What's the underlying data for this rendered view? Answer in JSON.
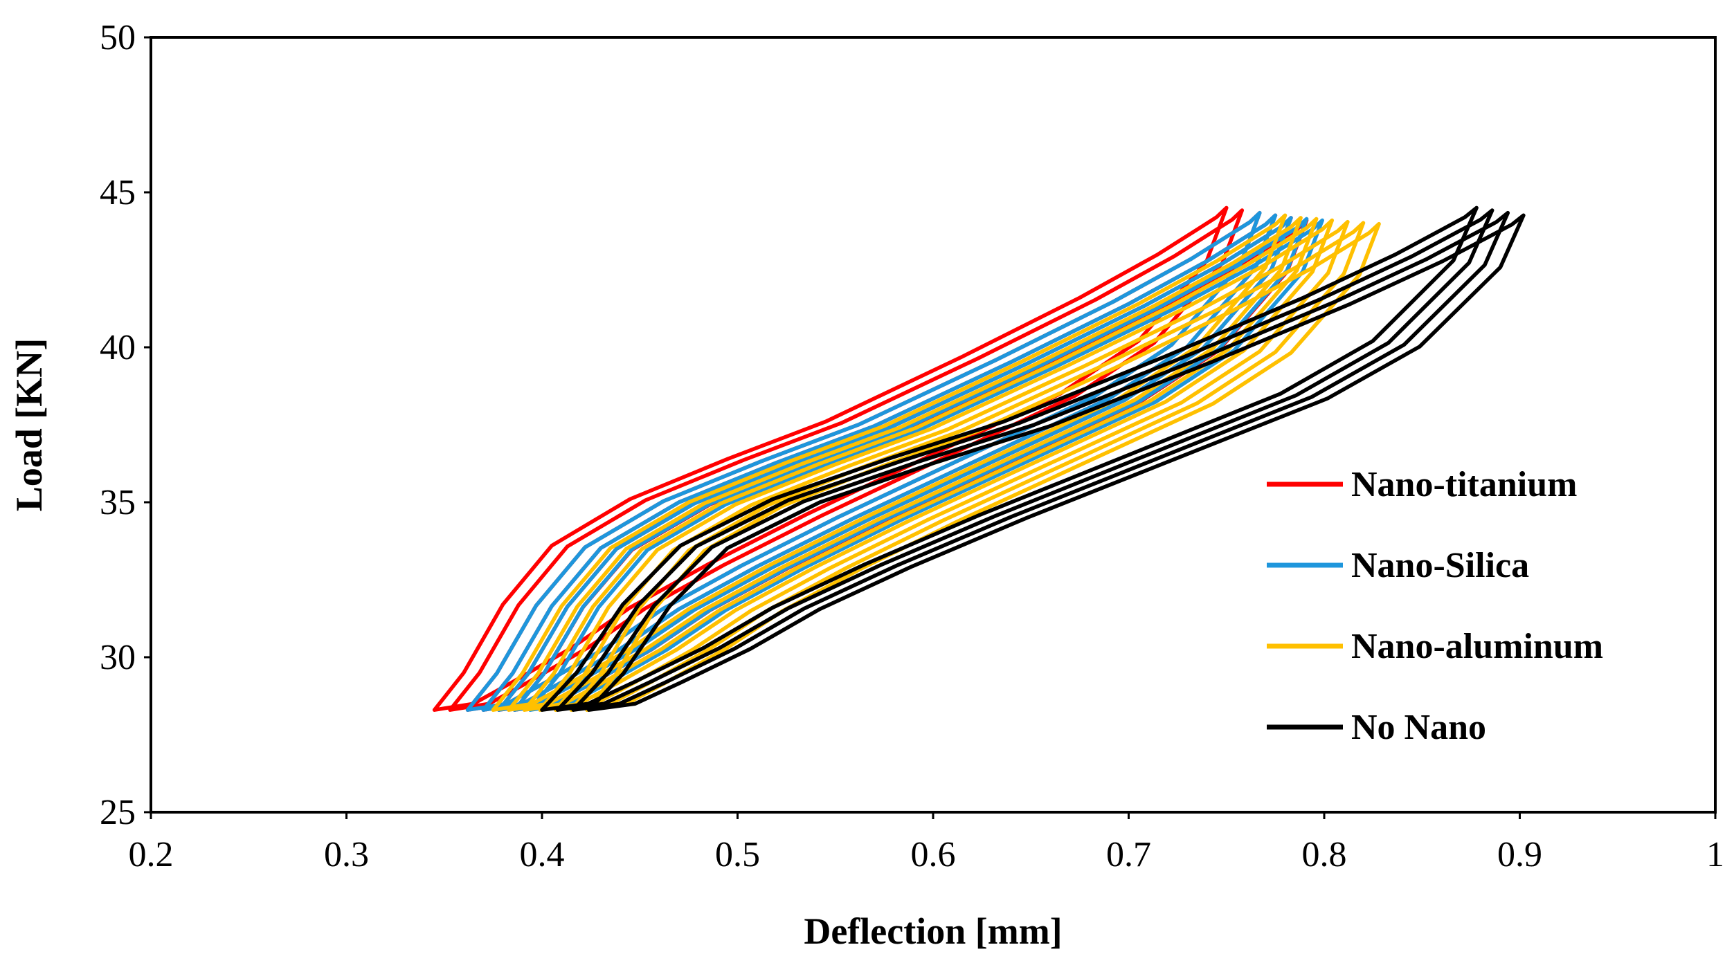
{
  "chart_data": {
    "type": "line",
    "title": "",
    "xlabel": "Deflection [mm]",
    "ylabel": "Load [KN]",
    "xlim": [
      0.2,
      1.0
    ],
    "ylim": [
      25,
      50
    ],
    "x_ticks": [
      0.2,
      0.3,
      0.4,
      0.5,
      0.6,
      0.7,
      0.8,
      0.9,
      1.0
    ],
    "x_tick_labels": [
      "0.2",
      "0.3",
      "0.4",
      "0.5",
      "0.6",
      "0.7",
      "0.8",
      "0.9",
      "1"
    ],
    "y_ticks": [
      25,
      30,
      35,
      40,
      45,
      50
    ],
    "y_tick_labels": [
      "25",
      "30",
      "35",
      "40",
      "45",
      "50"
    ],
    "grid": false,
    "legend_position": "right-center",
    "cycle_template": {
      "note": "Each hysteresis cycle: loading path (dx, load) from the minimum point, then unloading path; dx is deflection offset from cycle start",
      "loading_dx": [
        0.0,
        0.02,
        0.04,
        0.07,
        0.1,
        0.14,
        0.19,
        0.25,
        0.32,
        0.36,
        0.395,
        0.405
      ],
      "loading_load": [
        28.3,
        28.5,
        29.2,
        30.3,
        31.6,
        33.0,
        34.6,
        36.4,
        38.5,
        40.2,
        42.8,
        44.5
      ],
      "unloading_dx": [
        0.405,
        0.4,
        0.39,
        0.37,
        0.33,
        0.27,
        0.2,
        0.15,
        0.1,
        0.06,
        0.035,
        0.015,
        0.0
      ],
      "unloading_load": [
        44.5,
        44.2,
        43.8,
        43.0,
        41.6,
        39.7,
        37.6,
        36.4,
        35.1,
        33.6,
        31.7,
        29.5,
        28.3
      ]
    },
    "series": [
      {
        "name": "Nano-titanium",
        "color": "#ff0000",
        "cycle_starts": [
          0.345,
          0.353,
          0.362,
          0.37,
          0.378,
          0.386
        ],
        "load_scale": [
          1.0,
          0.995,
          0.99,
          0.985,
          0.98,
          0.975
        ]
      },
      {
        "name": "Nano-Silica",
        "color": "#1e96dc",
        "cycle_starts": [
          0.362,
          0.37,
          0.378,
          0.386,
          0.394
        ],
        "load_scale": [
          0.99,
          0.985,
          0.98,
          0.978,
          0.975
        ]
      },
      {
        "name": "Nano-aluminum",
        "color": "#ffc000",
        "cycle_starts": [
          0.375,
          0.383,
          0.391,
          0.399,
          0.407,
          0.415,
          0.423
        ],
        "load_scale": [
          0.985,
          0.98,
          0.978,
          0.975,
          0.972,
          0.97,
          0.968
        ]
      },
      {
        "name": "No Nano",
        "color": "#000000",
        "cycle_starts": [
          0.4,
          0.408,
          0.416,
          0.424
        ],
        "load_scale": [
          1.0,
          0.995,
          0.99,
          0.985
        ],
        "variant": "wide"
      }
    ],
    "legend": [
      {
        "label": "Nano-titanium",
        "color": "#ff0000"
      },
      {
        "label": "Nano-Silica",
        "color": "#1e96dc"
      },
      {
        "label": "Nano-aluminum",
        "color": "#ffc000"
      },
      {
        "label": "No Nano",
        "color": "#000000"
      }
    ]
  }
}
